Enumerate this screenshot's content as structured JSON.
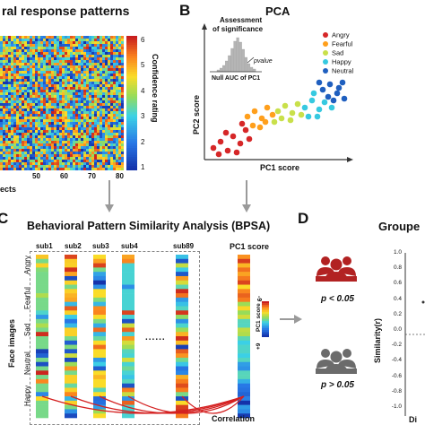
{
  "panelA": {
    "title": "ral response patterns",
    "colorbar_label": "Confidence rating",
    "colorbar_ticks": [
      "6",
      "5",
      "4",
      "3",
      "2",
      "1"
    ],
    "x_ticks": [
      "50",
      "60",
      "70",
      "80"
    ],
    "x_label_partial": "ects"
  },
  "panelB": {
    "letter": "B",
    "title": "PCA",
    "inset_title_line1": "Assessment",
    "inset_title_line2": "of significance",
    "inset_pvalue": "pvalue",
    "inset_xlabel": "Null AUC of PC1",
    "y_label": "PC2 score",
    "x_label": "PC1 score",
    "legend": [
      {
        "name": "Angry",
        "color": "#d62728"
      },
      {
        "name": "Fearful",
        "color": "#ff9f1c"
      },
      {
        "name": "Sad",
        "color": "#c9e04a"
      },
      {
        "name": "Happy",
        "color": "#36c9e0"
      },
      {
        "name": "Neutral",
        "color": "#1f5fbf"
      }
    ]
  },
  "panelC": {
    "letter": "C",
    "title": "Behavioral Pattern Similarity Analysis (BPSA)",
    "subjects": [
      "sub1",
      "sub2",
      "sub3",
      "sub4",
      "sub89"
    ],
    "ellipsis": "......",
    "pc1_label": "PC1 score",
    "y_axis_label": "Face images",
    "categories": [
      "Angry",
      "Fearful",
      "Sad",
      "Neutral",
      "Happy"
    ],
    "pc1_cbar_label": "PC1 score",
    "pc1_cbar_top": "-9",
    "pc1_cbar_bottom": "+9",
    "correlation_label": "Correlation"
  },
  "panelD": {
    "letter": "D",
    "p_low": "p < 0.05",
    "p_high": "p > 0.05",
    "group_title_partial": "Groupe",
    "y_label": "Similarity(r)",
    "y_ticks": [
      "1.0",
      "0.8",
      "0.6",
      "0.4",
      "0.2",
      "0.0",
      "-0.2",
      "-0.4",
      "-0.6",
      "-0.8",
      "-1.0"
    ],
    "x_partial": "Di"
  },
  "colors": {
    "group_red": "#b22222",
    "group_gray": "#6b6b6b",
    "arrow_gray": "#9a9a9a",
    "correlation_red": "#d42020"
  }
}
